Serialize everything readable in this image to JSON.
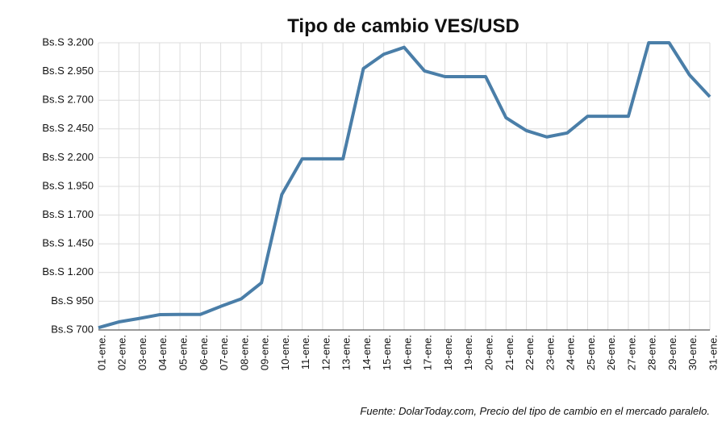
{
  "chart_data": {
    "type": "line",
    "title": "Tipo de cambio VES/USD",
    "source": "Fuente: DolarToday.com, Precio del tipo de cambio en el mercado paralelo.",
    "categories": [
      "01-ene.",
      "02-ene.",
      "03-ene.",
      "04-ene.",
      "05-ene.",
      "06-ene.",
      "07-ene.",
      "08-ene.",
      "09-ene.",
      "10-ene.",
      "11-ene.",
      "12-ene.",
      "13-ene.",
      "14-ene.",
      "15-ene.",
      "16-ene.",
      "17-ene.",
      "18-ene.",
      "19-ene.",
      "20-ene.",
      "21-ene.",
      "22-ene.",
      "23-ene.",
      "24-ene.",
      "25-ene.",
      "26-ene.",
      "27-ene.",
      "28-ene.",
      "29-ene.",
      "30-ene.",
      "31-ene."
    ],
    "series": [
      {
        "name": "VES/USD",
        "color": "#4a7ea8",
        "values": [
          720,
          770,
          800,
          833,
          835,
          835,
          905,
          970,
          1110,
          1880,
          2190,
          2190,
          2190,
          2975,
          3100,
          3160,
          2955,
          2905,
          2905,
          2905,
          2547,
          2435,
          2380,
          2415,
          2560,
          2560,
          2560,
          3200,
          3200,
          2920,
          2730
        ]
      }
    ],
    "ylim": [
      700,
      3200
    ],
    "yticks": [
      {
        "value": 700,
        "label": "Bs.S 700"
      },
      {
        "value": 950,
        "label": "Bs.S 950"
      },
      {
        "value": 1200,
        "label": "Bs.S 1.200"
      },
      {
        "value": 1450,
        "label": "Bs.S 1.450"
      },
      {
        "value": 1700,
        "label": "Bs.S 1.700"
      },
      {
        "value": 1950,
        "label": "Bs.S 1.950"
      },
      {
        "value": 2200,
        "label": "Bs.S 2.200"
      },
      {
        "value": 2450,
        "label": "Bs.S 2.450"
      },
      {
        "value": 2700,
        "label": "Bs.S 2.700"
      },
      {
        "value": 2950,
        "label": "Bs.S 2.950"
      },
      {
        "value": 3200,
        "label": "Bs.S 3.200"
      }
    ],
    "grid": true
  }
}
